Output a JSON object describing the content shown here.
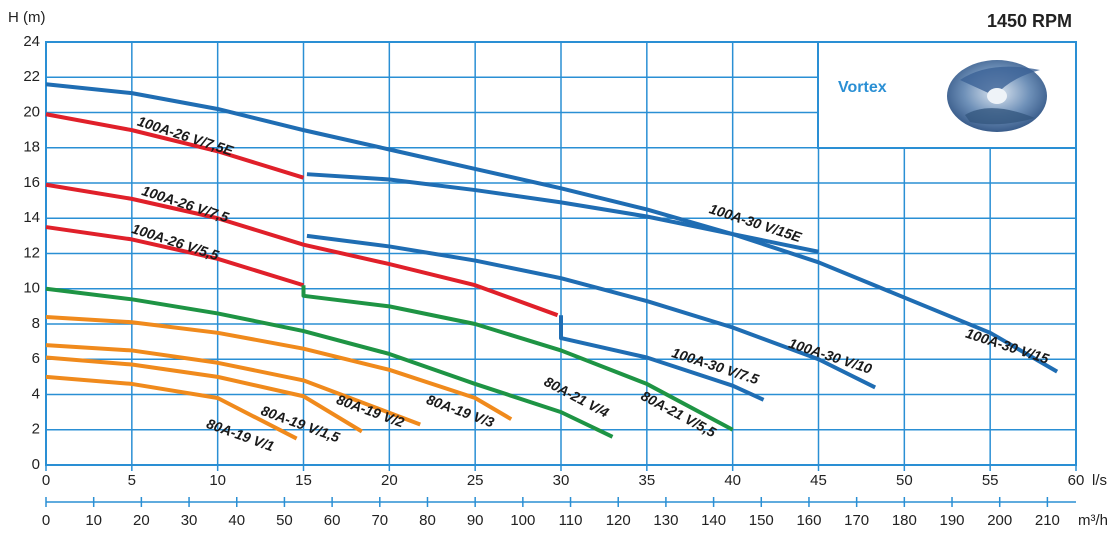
{
  "chart_data": {
    "type": "line",
    "title": "1450 RPM",
    "y_label": "H (m)",
    "x_label": "l/s",
    "x2_label": "m³/h",
    "inset_label": "Vortex",
    "xlim": [
      0,
      60
    ],
    "xticks": [
      0,
      5,
      10,
      15,
      20,
      25,
      30,
      35,
      40,
      45,
      50,
      55,
      60
    ],
    "ylim": [
      0,
      24
    ],
    "yticks": [
      0,
      2,
      4,
      6,
      8,
      10,
      12,
      14,
      16,
      18,
      20,
      22,
      24
    ],
    "x2lim": [
      0,
      216
    ],
    "x2ticks": [
      0,
      10,
      20,
      30,
      40,
      50,
      60,
      70,
      80,
      90,
      100,
      110,
      120,
      130,
      140,
      150,
      160,
      170,
      180,
      190,
      200,
      210
    ],
    "grid": true,
    "series": [
      {
        "name": "100A-30 V/15",
        "color": "#1f6db3",
        "x": [
          0,
          5,
          10,
          15,
          20,
          25,
          30,
          35,
          40,
          45,
          50,
          55,
          58.9
        ],
        "values": [
          21.6,
          21.1,
          20.2,
          19.0,
          17.9,
          16.8,
          15.7,
          14.5,
          13.1,
          11.5,
          9.5,
          7.5,
          5.3
        ]
      },
      {
        "name": "100A-30 V/15E",
        "color": "#1f6db3",
        "x": [
          15.2,
          20,
          25,
          30,
          35,
          40,
          45
        ],
        "values": [
          16.5,
          16.2,
          15.6,
          14.9,
          14.1,
          13.1,
          12.1
        ]
      },
      {
        "name": "100A-30 V/10",
        "color": "#1f6db3",
        "x": [
          15.2,
          20,
          25,
          30,
          35,
          40,
          45,
          48.3
        ],
        "values": [
          13.0,
          12.4,
          11.6,
          10.6,
          9.3,
          7.8,
          6.0,
          4.4
        ]
      },
      {
        "name": "100A-30 V/7.5",
        "color": "#1f6db3",
        "x": [
          30,
          30,
          35,
          40,
          41.8
        ],
        "values": [
          8.5,
          7.2,
          6.1,
          4.5,
          3.7
        ]
      },
      {
        "name": "100A-26 V/7,5E",
        "color": "#e0202a",
        "x": [
          0,
          5,
          10,
          15
        ],
        "values": [
          19.9,
          19.0,
          17.8,
          16.3
        ]
      },
      {
        "name": "100A-26 V/7,5",
        "color": "#e0202a",
        "x": [
          0,
          5,
          10,
          15,
          20,
          25,
          29.8
        ],
        "values": [
          15.9,
          15.1,
          14.0,
          12.5,
          11.4,
          10.2,
          8.5
        ]
      },
      {
        "name": "100A-26 V/5,5",
        "color": "#e0202a",
        "x": [
          0,
          5,
          10,
          15
        ],
        "values": [
          13.5,
          12.8,
          11.7,
          10.2
        ]
      },
      {
        "name": "80A-21 V/5,5",
        "color": "#1e9444",
        "x": [
          15,
          15,
          20,
          25,
          30,
          35,
          40
        ],
        "values": [
          10.2,
          9.6,
          9.0,
          8.0,
          6.5,
          4.6,
          2.0
        ]
      },
      {
        "name": "80A-21 V/4",
        "color": "#1e9444",
        "x": [
          0,
          5,
          10,
          15,
          20,
          25,
          30,
          33
        ],
        "values": [
          10.0,
          9.4,
          8.6,
          7.6,
          6.3,
          4.6,
          3.0,
          1.6
        ]
      },
      {
        "name": "80A-19 V/3",
        "color": "#f08a1c",
        "x": [
          0,
          5,
          10,
          15,
          20,
          25,
          27.1
        ],
        "values": [
          8.4,
          8.1,
          7.5,
          6.6,
          5.4,
          3.8,
          2.6
        ]
      },
      {
        "name": "80A-19 V/2",
        "color": "#f08a1c",
        "x": [
          0,
          5,
          10,
          15,
          21.8
        ],
        "values": [
          6.8,
          6.5,
          5.8,
          4.8,
          2.3
        ]
      },
      {
        "name": "80A-19 V/1,5",
        "color": "#f08a1c",
        "x": [
          0,
          5,
          10,
          15,
          18.4
        ],
        "values": [
          6.1,
          5.7,
          5.0,
          3.9,
          1.9
        ]
      },
      {
        "name": "80A-19 V/1",
        "color": "#f08a1c",
        "x": [
          0,
          5,
          10,
          14.6
        ],
        "values": [
          5.0,
          4.6,
          3.8,
          1.5
        ]
      }
    ]
  }
}
